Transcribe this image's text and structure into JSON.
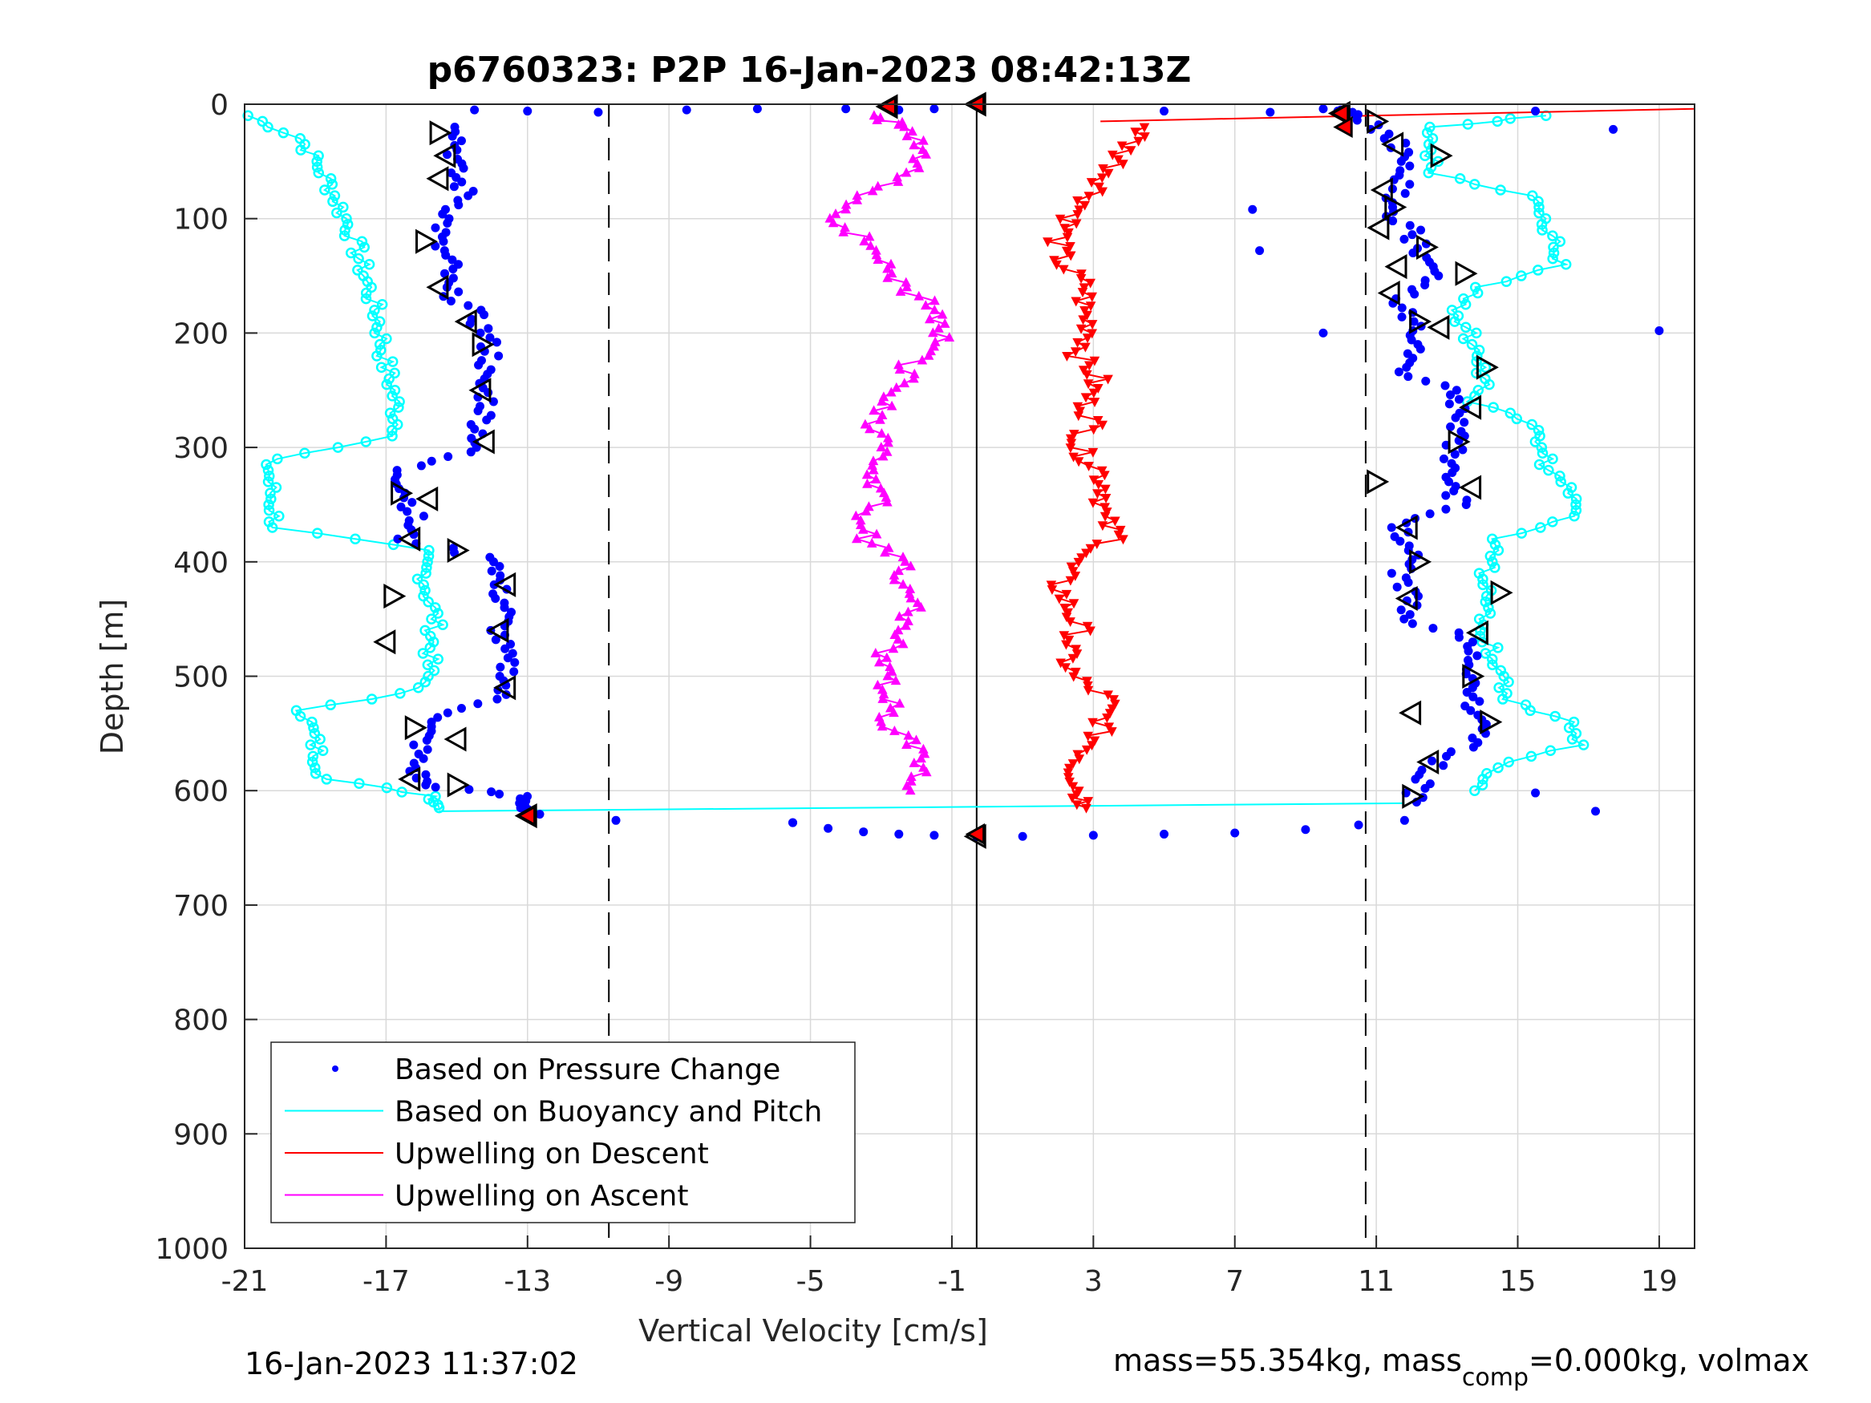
{
  "chart_data": {
    "type": "scatter",
    "title": "p6760323: P2P 16-Jan-2023 08:42:13Z",
    "xlabel": "Vertical Velocity [cm/s]",
    "ylabel": "Depth [m]",
    "xlim": [
      -21,
      20
    ],
    "ylim": [
      0,
      1000
    ],
    "y_reversed": true,
    "xticks": [
      "-21",
      "-17",
      "-13",
      "-9",
      "-5",
      "-1",
      "3",
      "7",
      "11",
      "15",
      "19"
    ],
    "yticks": [
      "0",
      "100",
      "200",
      "300",
      "400",
      "500",
      "600",
      "700",
      "800",
      "900",
      "1000"
    ],
    "grid": true,
    "legend_position": "bottom-left",
    "reference_lines": {
      "dashed": [
        -10.7,
        10.7
      ],
      "solid": [
        -0.3
      ]
    },
    "colors": {
      "pressure": "#0000ff",
      "buoyancy": "#00ffff",
      "descent": "#ff0000",
      "ascent": "#ff00ff"
    },
    "series": [
      {
        "name": "Based on Pressure Change",
        "marker": "dot",
        "points_descent": [
          [
            -14.8,
            20
          ],
          [
            -15.0,
            40
          ],
          [
            -15.1,
            60
          ],
          [
            -14.7,
            80
          ],
          [
            -15.3,
            100
          ],
          [
            -15.6,
            120
          ],
          [
            -15.2,
            140
          ],
          [
            -15.4,
            160
          ],
          [
            -14.6,
            180
          ],
          [
            -14.2,
            200
          ],
          [
            -14.0,
            220
          ],
          [
            -14.4,
            240
          ],
          [
            -14.1,
            260
          ],
          [
            -14.3,
            280
          ],
          [
            -14.4,
            300
          ],
          [
            -16.6,
            320
          ],
          [
            -16.4,
            340
          ],
          [
            -16.2,
            360
          ],
          [
            -16.5,
            380
          ],
          [
            -13.7,
            400
          ],
          [
            -13.9,
            420
          ],
          [
            -13.6,
            440
          ],
          [
            -13.8,
            460
          ],
          [
            -13.7,
            480
          ],
          [
            -13.5,
            500
          ],
          [
            -13.9,
            520
          ],
          [
            -15.8,
            540
          ],
          [
            -16.0,
            560
          ],
          [
            -16.2,
            580
          ],
          [
            -15.9,
            595
          ],
          [
            -13.2,
            605
          ],
          [
            -13.0,
            615
          ],
          [
            -12.9,
            622
          ]
        ],
        "points_bottom": [
          [
            -5.5,
            628
          ],
          [
            -4.5,
            633
          ],
          [
            -3.5,
            636
          ],
          [
            -2.5,
            638
          ],
          [
            -1.5,
            639
          ],
          [
            -0.3,
            640
          ],
          [
            1,
            640
          ],
          [
            3,
            639
          ],
          [
            5,
            638
          ],
          [
            7,
            637
          ],
          [
            9,
            634
          ],
          [
            10.5,
            630
          ],
          [
            11.8,
            626
          ]
        ],
        "points_ascent": [
          [
            12.0,
            610
          ],
          [
            12.3,
            590
          ],
          [
            13.0,
            570
          ],
          [
            14.2,
            550
          ],
          [
            13.8,
            530
          ],
          [
            13.7,
            510
          ],
          [
            13.7,
            490
          ],
          [
            13.9,
            470
          ],
          [
            11.8,
            450
          ],
          [
            11.9,
            430
          ],
          [
            11.7,
            410
          ],
          [
            12.0,
            390
          ],
          [
            11.6,
            370
          ],
          [
            13.3,
            350
          ],
          [
            13.2,
            330
          ],
          [
            13.1,
            310
          ],
          [
            13.3,
            290
          ],
          [
            13.5,
            270
          ],
          [
            13.0,
            250
          ],
          [
            11.6,
            230
          ],
          [
            12.2,
            210
          ],
          [
            12.0,
            190
          ],
          [
            11.7,
            170
          ],
          [
            12.5,
            150
          ],
          [
            12.2,
            130
          ],
          [
            12.0,
            110
          ],
          [
            11.3,
            90
          ],
          [
            11.7,
            70
          ],
          [
            12.0,
            50
          ],
          [
            11.5,
            30
          ],
          [
            10.3,
            10
          ],
          [
            10.0,
            5
          ]
        ],
        "points_surface": [
          [
            -14.5,
            5
          ],
          [
            -13.0,
            6
          ],
          [
            -11.0,
            7
          ],
          [
            -8.5,
            5
          ],
          [
            -6.5,
            4
          ],
          [
            -4.0,
            4
          ],
          [
            -2.5,
            5
          ],
          [
            -1.5,
            4
          ],
          [
            5,
            6
          ],
          [
            8,
            7
          ],
          [
            9.5,
            4
          ],
          [
            15.5,
            6
          ],
          [
            17.7,
            22
          ],
          [
            19.0,
            198
          ],
          [
            17.2,
            618
          ],
          [
            15.5,
            602
          ],
          [
            7.5,
            92
          ],
          [
            7.7,
            128
          ],
          [
            9.5,
            200
          ],
          [
            -10.5,
            626
          ],
          [
            -5.5,
            628
          ]
        ]
      },
      {
        "name": "Based on Buoyancy and Pitch",
        "marker": "circle",
        "points_descent": [
          [
            -20.9,
            10
          ],
          [
            -19.4,
            30
          ],
          [
            -19.0,
            50
          ],
          [
            -18.6,
            70
          ],
          [
            -18.3,
            90
          ],
          [
            -18.0,
            110
          ],
          [
            -17.8,
            130
          ],
          [
            -17.6,
            150
          ],
          [
            -17.4,
            170
          ],
          [
            -17.2,
            190
          ],
          [
            -17.1,
            210
          ],
          [
            -17.0,
            230
          ],
          [
            -16.8,
            250
          ],
          [
            -16.7,
            270
          ],
          [
            -16.6,
            290
          ],
          [
            -20.3,
            310
          ],
          [
            -20.3,
            330
          ],
          [
            -20.2,
            350
          ],
          [
            -20.1,
            370
          ],
          [
            -16.0,
            390
          ],
          [
            -15.9,
            410
          ],
          [
            -15.8,
            430
          ],
          [
            -15.6,
            450
          ],
          [
            -15.7,
            470
          ],
          [
            -15.8,
            490
          ],
          [
            -15.9,
            510
          ],
          [
            -19.3,
            530
          ],
          [
            -19.1,
            550
          ],
          [
            -18.9,
            570
          ],
          [
            -18.7,
            590
          ],
          [
            -15.6,
            605
          ],
          [
            -15.5,
            615
          ]
        ],
        "points_ascent": [
          [
            14.0,
            600
          ],
          [
            14.3,
            580
          ],
          [
            16.8,
            560
          ],
          [
            16.6,
            540
          ],
          [
            14.6,
            520
          ],
          [
            14.5,
            500
          ],
          [
            14.3,
            480
          ],
          [
            14.1,
            460
          ],
          [
            14.2,
            440
          ],
          [
            14.0,
            420
          ],
          [
            14.2,
            400
          ],
          [
            14.3,
            380
          ],
          [
            16.6,
            360
          ],
          [
            16.4,
            340
          ],
          [
            15.9,
            320
          ],
          [
            15.6,
            300
          ],
          [
            15.4,
            280
          ],
          [
            13.8,
            260
          ],
          [
            14.0,
            240
          ],
          [
            14.0,
            220
          ],
          [
            13.6,
            200
          ],
          [
            13.3,
            180
          ],
          [
            13.9,
            160
          ],
          [
            16.2,
            140
          ],
          [
            16.0,
            120
          ],
          [
            15.8,
            100
          ],
          [
            15.5,
            80
          ],
          [
            12.5,
            60
          ],
          [
            12.6,
            40
          ],
          [
            12.7,
            20
          ],
          [
            15.8,
            10
          ]
        ]
      },
      {
        "name": "Upwelling on Descent",
        "marker": "triangle-down",
        "points": [
          [
            4.5,
            20
          ],
          [
            3.9,
            40
          ],
          [
            3.5,
            60
          ],
          [
            3.0,
            80
          ],
          [
            2.4,
            100
          ],
          [
            2.0,
            120
          ],
          [
            2.1,
            140
          ],
          [
            2.8,
            160
          ],
          [
            2.7,
            180
          ],
          [
            3.0,
            200
          ],
          [
            2.6,
            220
          ],
          [
            3.1,
            240
          ],
          [
            2.8,
            260
          ],
          [
            3.0,
            280
          ],
          [
            2.5,
            300
          ],
          [
            3.2,
            320
          ],
          [
            3.4,
            340
          ],
          [
            3.2,
            360
          ],
          [
            3.7,
            380
          ],
          [
            2.4,
            400
          ],
          [
            2.0,
            420
          ],
          [
            2.3,
            440
          ],
          [
            2.6,
            460
          ],
          [
            2.2,
            480
          ],
          [
            2.4,
            500
          ],
          [
            3.4,
            520
          ],
          [
            3.3,
            540
          ],
          [
            3.0,
            560
          ],
          [
            2.5,
            580
          ],
          [
            2.6,
            600
          ],
          [
            2.8,
            615
          ]
        ]
      },
      {
        "name": "Upwelling on Ascent",
        "marker": "triangle-up",
        "points": [
          [
            -2.2,
            600
          ],
          [
            -1.8,
            580
          ],
          [
            -2.2,
            560
          ],
          [
            -2.8,
            540
          ],
          [
            -2.8,
            520
          ],
          [
            -2.9,
            500
          ],
          [
            -2.9,
            480
          ],
          [
            -2.4,
            460
          ],
          [
            -2.1,
            440
          ],
          [
            -2.3,
            420
          ],
          [
            -2.5,
            400
          ],
          [
            -3.4,
            380
          ],
          [
            -3.4,
            360
          ],
          [
            -3.0,
            340
          ],
          [
            -3.2,
            320
          ],
          [
            -2.8,
            300
          ],
          [
            -3.1,
            280
          ],
          [
            -2.7,
            260
          ],
          [
            -2.4,
            240
          ],
          [
            -2.0,
            220
          ],
          [
            -1.2,
            200
          ],
          [
            -1.4,
            180
          ],
          [
            -2.4,
            160
          ],
          [
            -2.6,
            140
          ],
          [
            -3.5,
            120
          ],
          [
            -4.2,
            100
          ],
          [
            -3.4,
            80
          ],
          [
            -2.3,
            60
          ],
          [
            -1.8,
            40
          ],
          [
            -2.3,
            20
          ],
          [
            -3.2,
            10
          ]
        ]
      }
    ],
    "stall_markers": [
      [
        -15.5,
        25
      ],
      [
        -15.3,
        45
      ],
      [
        -15.5,
        65
      ],
      [
        -15.9,
        120
      ],
      [
        -15.5,
        160
      ],
      [
        -14.7,
        190
      ],
      [
        -14.3,
        210
      ],
      [
        -14.3,
        250
      ],
      [
        -14.2,
        295
      ],
      [
        -16.6,
        340
      ],
      [
        -15.8,
        345
      ],
      [
        -16.3,
        380
      ],
      [
        -15.0,
        390
      ],
      [
        -13.6,
        420
      ],
      [
        -13.8,
        460
      ],
      [
        -16.8,
        430
      ],
      [
        -17.0,
        470
      ],
      [
        -13.6,
        510
      ],
      [
        -16.2,
        545
      ],
      [
        -15.0,
        555
      ],
      [
        -16.3,
        590
      ],
      [
        -15.0,
        595
      ],
      [
        -13.0,
        622
      ],
      [
        -2.8,
        2
      ],
      [
        10.0,
        8
      ],
      [
        11.0,
        15
      ],
      [
        11.5,
        35
      ],
      [
        12.8,
        45
      ],
      [
        11.2,
        75
      ],
      [
        11.5,
        90
      ],
      [
        11.1,
        108
      ],
      [
        12.4,
        125
      ],
      [
        11.6,
        142
      ],
      [
        13.5,
        148
      ],
      [
        11.4,
        165
      ],
      [
        12.2,
        190
      ],
      [
        12.8,
        195
      ],
      [
        14.1,
        230
      ],
      [
        13.7,
        265
      ],
      [
        13.3,
        295
      ],
      [
        13.7,
        335
      ],
      [
        11.0,
        330
      ],
      [
        11.9,
        370
      ],
      [
        12.2,
        400
      ],
      [
        11.9,
        432
      ],
      [
        14.5,
        427
      ],
      [
        13.9,
        462
      ],
      [
        13.7,
        500
      ],
      [
        12.0,
        532
      ],
      [
        14.2,
        540
      ],
      [
        12.5,
        575
      ],
      [
        12.0,
        605
      ],
      [
        -0.3,
        0
      ],
      [
        -0.3,
        640
      ]
    ],
    "red_markers": [
      [
        -13.0,
        622
      ],
      [
        -2.8,
        2
      ],
      [
        -0.3,
        0
      ],
      [
        -0.3,
        638
      ],
      [
        10.0,
        8
      ],
      [
        10.1,
        20
      ]
    ]
  },
  "footer": {
    "timestamp": "16-Jan-2023 11:37:02",
    "mass_prefix": "mass=55.354kg, mass",
    "mass_sub": "comp",
    "mass_suffix": "=0.000kg, volmax"
  }
}
